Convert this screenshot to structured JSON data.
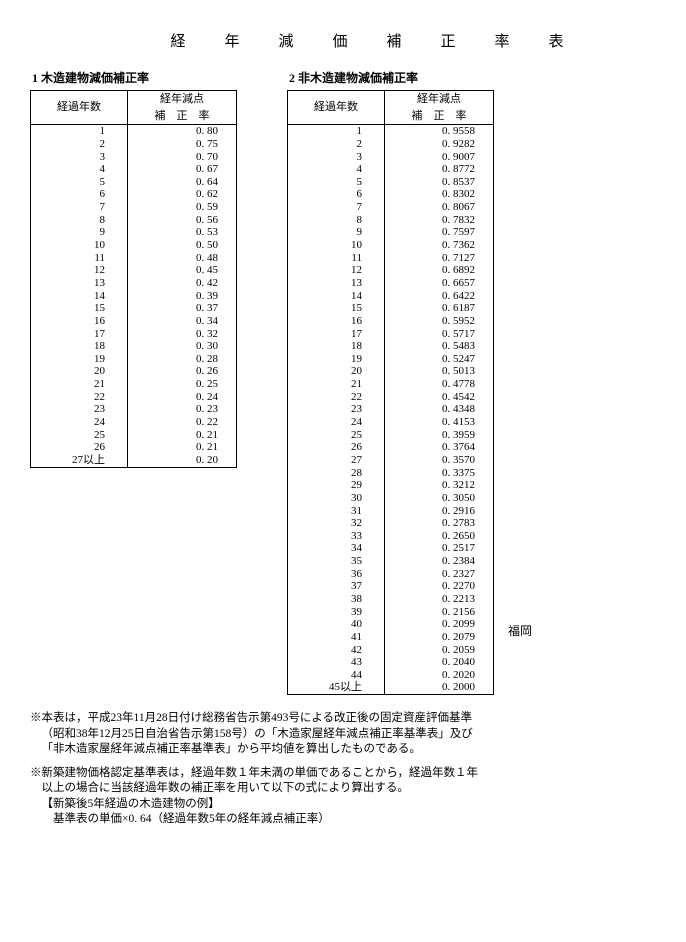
{
  "title": "経　年　減　価　補　正　率　表",
  "table1": {
    "caption": "1 木造建物減価補正率",
    "header_year": "経過年数",
    "header_rate_line1": "経年減点",
    "header_rate_line2": "補　正　率",
    "rows": [
      {
        "y": "1",
        "r": "0. 80"
      },
      {
        "y": "2",
        "r": "0. 75"
      },
      {
        "y": "3",
        "r": "0. 70"
      },
      {
        "y": "4",
        "r": "0. 67"
      },
      {
        "y": "5",
        "r": "0. 64"
      },
      {
        "y": "6",
        "r": "0. 62"
      },
      {
        "y": "7",
        "r": "0. 59"
      },
      {
        "y": "8",
        "r": "0. 56"
      },
      {
        "y": "9",
        "r": "0. 53"
      },
      {
        "y": "10",
        "r": "0. 50"
      },
      {
        "y": "11",
        "r": "0. 48"
      },
      {
        "y": "12",
        "r": "0. 45"
      },
      {
        "y": "13",
        "r": "0. 42"
      },
      {
        "y": "14",
        "r": "0. 39"
      },
      {
        "y": "15",
        "r": "0. 37"
      },
      {
        "y": "16",
        "r": "0. 34"
      },
      {
        "y": "17",
        "r": "0. 32"
      },
      {
        "y": "18",
        "r": "0. 30"
      },
      {
        "y": "19",
        "r": "0. 28"
      },
      {
        "y": "20",
        "r": "0. 26"
      },
      {
        "y": "21",
        "r": "0. 25"
      },
      {
        "y": "22",
        "r": "0. 24"
      },
      {
        "y": "23",
        "r": "0. 23"
      },
      {
        "y": "24",
        "r": "0. 22"
      },
      {
        "y": "25",
        "r": "0. 21"
      },
      {
        "y": "26",
        "r": "0. 21"
      },
      {
        "y": "27以上",
        "r": "0. 20"
      }
    ]
  },
  "table2": {
    "caption": "2 非木造建物減価補正率",
    "header_year": "経過年数",
    "header_rate_line1": "経年減点",
    "header_rate_line2": "補　正　率",
    "rows": [
      {
        "y": "1",
        "r": "0. 9558"
      },
      {
        "y": "2",
        "r": "0. 9282"
      },
      {
        "y": "3",
        "r": "0. 9007"
      },
      {
        "y": "4",
        "r": "0. 8772"
      },
      {
        "y": "5",
        "r": "0. 8537"
      },
      {
        "y": "6",
        "r": "0. 8302"
      },
      {
        "y": "7",
        "r": "0. 8067"
      },
      {
        "y": "8",
        "r": "0. 7832"
      },
      {
        "y": "9",
        "r": "0. 7597"
      },
      {
        "y": "10",
        "r": "0. 7362"
      },
      {
        "y": "11",
        "r": "0. 7127"
      },
      {
        "y": "12",
        "r": "0. 6892"
      },
      {
        "y": "13",
        "r": "0. 6657"
      },
      {
        "y": "14",
        "r": "0. 6422"
      },
      {
        "y": "15",
        "r": "0. 6187"
      },
      {
        "y": "16",
        "r": "0. 5952"
      },
      {
        "y": "17",
        "r": "0. 5717"
      },
      {
        "y": "18",
        "r": "0. 5483"
      },
      {
        "y": "19",
        "r": "0. 5247"
      },
      {
        "y": "20",
        "r": "0. 5013"
      },
      {
        "y": "21",
        "r": "0. 4778"
      },
      {
        "y": "22",
        "r": "0. 4542"
      },
      {
        "y": "23",
        "r": "0. 4348"
      },
      {
        "y": "24",
        "r": "0. 4153"
      },
      {
        "y": "25",
        "r": "0. 3959"
      },
      {
        "y": "26",
        "r": "0. 3764"
      },
      {
        "y": "27",
        "r": "0. 3570"
      },
      {
        "y": "28",
        "r": "0. 3375"
      },
      {
        "y": "29",
        "r": "0. 3212"
      },
      {
        "y": "30",
        "r": "0. 3050"
      },
      {
        "y": "31",
        "r": "0. 2916"
      },
      {
        "y": "32",
        "r": "0. 2783"
      },
      {
        "y": "33",
        "r": "0. 2650"
      },
      {
        "y": "34",
        "r": "0. 2517"
      },
      {
        "y": "35",
        "r": "0. 2384"
      },
      {
        "y": "36",
        "r": "0. 2327"
      },
      {
        "y": "37",
        "r": "0. 2270"
      },
      {
        "y": "38",
        "r": "0. 2213"
      },
      {
        "y": "39",
        "r": "0. 2156"
      },
      {
        "y": "40",
        "r": "0. 2099"
      },
      {
        "y": "41",
        "r": "0. 2079"
      },
      {
        "y": "42",
        "r": "0. 2059"
      },
      {
        "y": "43",
        "r": "0. 2040"
      },
      {
        "y": "44",
        "r": "0. 2020"
      },
      {
        "y": "45以上",
        "r": "0. 2000"
      }
    ]
  },
  "side_label": "福岡",
  "notes": {
    "p1": "※本表は，平成23年11月28日付け総務省告示第493号による改正後の固定資産評価基準",
    "p1b": "（昭和38年12月25日自治省告示第158号）の「木造家屋経年減点補正率基準表」及び",
    "p1c": "「非木造家屋経年減点補正率基準表」から平均値を算出したものである。",
    "p2": "※新築建物価格認定基準表は，経過年数１年未満の単価であることから，経過年数１年",
    "p2b": "以上の場合に当該経過年数の補正率を用いて以下の式により算出する。",
    "p3": "【新築後5年経過の木造建物の例】",
    "p4": "基準表の単価×0. 64（経過年数5年の経年減点補正率）"
  }
}
